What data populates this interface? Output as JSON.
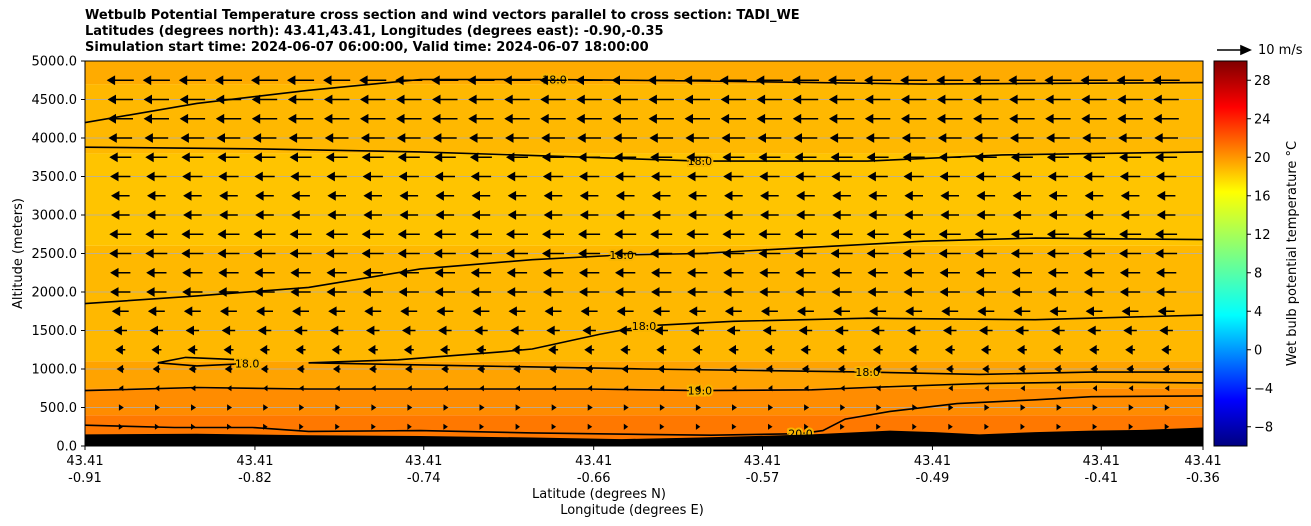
{
  "title_lines": [
    "Wetbulb Potential Temperature cross section and wind vectors parallel to cross section: TADI_WE",
    "Latitudes (degrees north): 43.41,43.41, Longitudes (degrees east): -0.90,-0.35",
    "Simulation start time: 2024-06-07 06:00:00, Valid time: 2024-06-07 18:00:00"
  ],
  "chart_data": {
    "type": "heatmap",
    "subtype": "vertical cross section with contour lines and wind vectors",
    "xlabel_lat": "Latitude (degrees N)",
    "xlabel_lon": "Longitude (degrees E)",
    "ylabel": "Altitude (meters)",
    "ylim": [
      0,
      5000
    ],
    "xlim": [
      0,
      1
    ],
    "yticks": [
      0,
      500,
      1000,
      1500,
      2000,
      2500,
      3000,
      3500,
      4000,
      4500,
      5000
    ],
    "ytick_labels": [
      "0.0",
      "500.0",
      "1000.0",
      "1500.0",
      "2000.0",
      "2500.0",
      "3000.0",
      "3500.0",
      "4000.0",
      "4500.0",
      "5000.0"
    ],
    "xticks": [
      {
        "pos": 0.0,
        "lat": "43.41",
        "lon": "-0.91"
      },
      {
        "pos": 0.152,
        "lat": "43.41",
        "lon": "-0.82"
      },
      {
        "pos": 0.303,
        "lat": "43.41",
        "lon": "-0.74"
      },
      {
        "pos": 0.455,
        "lat": "43.41",
        "lon": "-0.66"
      },
      {
        "pos": 0.606,
        "lat": "43.41",
        "lon": "-0.57"
      },
      {
        "pos": 0.758,
        "lat": "43.41",
        "lon": "-0.49"
      },
      {
        "pos": 0.909,
        "lat": "43.41",
        "lon": "-0.41"
      },
      {
        "pos": 1.0,
        "lat": "43.41",
        "lon": "-0.36"
      }
    ],
    "grid": true,
    "terrain_profile": [
      [
        0,
        150
      ],
      [
        0.1,
        160
      ],
      [
        0.2,
        140
      ],
      [
        0.3,
        130
      ],
      [
        0.4,
        110
      ],
      [
        0.48,
        90
      ],
      [
        0.55,
        110
      ],
      [
        0.6,
        130
      ],
      [
        0.65,
        150
      ],
      [
        0.72,
        200
      ],
      [
        0.76,
        180
      ],
      [
        0.8,
        150
      ],
      [
        0.85,
        180
      ],
      [
        0.9,
        200
      ],
      [
        0.95,
        210
      ],
      [
        1.0,
        240
      ]
    ],
    "colorbar": {
      "label": "Wet bulb potential temperature °C",
      "range": [
        -10,
        30
      ],
      "ticks": [
        -8,
        -4,
        0,
        4,
        8,
        12,
        16,
        20,
        24,
        28
      ],
      "tick_labels": [
        "−8",
        "−4",
        "0",
        "4",
        "8",
        "12",
        "16",
        "20",
        "24",
        "28"
      ]
    },
    "shading_layers": [
      {
        "z_bottom": 0,
        "z_top": 400,
        "value": 20.3
      },
      {
        "z_bottom": 400,
        "z_top": 750,
        "value": 19.5
      },
      {
        "z_bottom": 750,
        "z_top": 1100,
        "value": 18.6
      },
      {
        "z_bottom": 1100,
        "z_top": 2600,
        "value": 17.8
      },
      {
        "z_bottom": 2600,
        "z_top": 3800,
        "value": 17.3
      },
      {
        "z_bottom": 3800,
        "z_top": 4700,
        "value": 17.8
      },
      {
        "z_bottom": 4700,
        "z_top": 5000,
        "value": 18.3
      }
    ],
    "contours": [
      {
        "level": "18.0",
        "points": [
          [
            0,
            4200
          ],
          [
            0.1,
            4450
          ],
          [
            0.2,
            4620
          ],
          [
            0.3,
            4760
          ],
          [
            0.42,
            4760
          ],
          [
            0.55,
            4740
          ],
          [
            0.75,
            4700
          ],
          [
            1.0,
            4720
          ]
        ]
      },
      {
        "level": "18.0",
        "points": [
          [
            0,
            3880
          ],
          [
            0.15,
            3860
          ],
          [
            0.3,
            3820
          ],
          [
            0.45,
            3750
          ],
          [
            0.55,
            3700
          ],
          [
            0.7,
            3700
          ],
          [
            0.82,
            3780
          ],
          [
            1.0,
            3820
          ]
        ]
      },
      {
        "level": "18.0",
        "points": [
          [
            0,
            1850
          ],
          [
            0.1,
            1950
          ],
          [
            0.2,
            2060
          ],
          [
            0.3,
            2300
          ],
          [
            0.4,
            2420
          ],
          [
            0.48,
            2480
          ],
          [
            0.55,
            2500
          ],
          [
            0.65,
            2580
          ],
          [
            0.75,
            2660
          ],
          [
            0.85,
            2700
          ],
          [
            1.0,
            2680
          ]
        ]
      },
      {
        "level": "18.0",
        "points": [
          [
            0.2,
            1080
          ],
          [
            0.28,
            1120
          ],
          [
            0.37,
            1220
          ],
          [
            0.4,
            1260
          ],
          [
            0.46,
            1450
          ],
          [
            0.5,
            1560
          ],
          [
            0.58,
            1620
          ],
          [
            0.7,
            1660
          ],
          [
            0.85,
            1640
          ],
          [
            1.0,
            1700
          ]
        ]
      },
      {
        "level": "18.0",
        "points": [
          [
            0.065,
            1080
          ],
          [
            0.09,
            1150
          ],
          [
            0.14,
            1120
          ],
          [
            0.145,
            1070
          ],
          [
            0.1,
            1040
          ],
          [
            0.065,
            1080
          ]
        ]
      },
      {
        "level": "18.0",
        "points": [
          [
            0.2,
            1080
          ],
          [
            0.35,
            1040
          ],
          [
            0.5,
            1000
          ],
          [
            0.6,
            980
          ],
          [
            0.7,
            960
          ],
          [
            0.8,
            930
          ],
          [
            0.9,
            960
          ],
          [
            1.0,
            960
          ]
        ]
      },
      {
        "level": "19.0",
        "points": [
          [
            0,
            720
          ],
          [
            0.1,
            760
          ],
          [
            0.2,
            740
          ],
          [
            0.3,
            740
          ],
          [
            0.45,
            740
          ],
          [
            0.55,
            720
          ],
          [
            0.65,
            730
          ],
          [
            0.7,
            760
          ],
          [
            0.8,
            810
          ],
          [
            0.9,
            830
          ],
          [
            1.0,
            820
          ]
        ]
      },
      {
        "level": "20.0",
        "points": [
          [
            0,
            270
          ],
          [
            0.08,
            240
          ],
          [
            0.15,
            240
          ],
          [
            0.2,
            190
          ],
          [
            0.3,
            200
          ],
          [
            0.4,
            170
          ],
          [
            0.5,
            150
          ],
          [
            0.56,
            140
          ],
          [
            0.64,
            160
          ],
          [
            0.66,
            200
          ],
          [
            0.68,
            350
          ],
          [
            0.72,
            450
          ],
          [
            0.78,
            550
          ],
          [
            0.85,
            600
          ],
          [
            0.9,
            640
          ],
          [
            1.0,
            650
          ]
        ]
      }
    ],
    "wind_vectors": {
      "u_by_level": [
        {
          "z": 250,
          "u": 0.5
        },
        {
          "z": 500,
          "u": 0.8
        },
        {
          "z": 750,
          "u": -0.5
        },
        {
          "z": 1000,
          "u": -1.8
        },
        {
          "z": 1250,
          "u": -2.5
        },
        {
          "z": 1500,
          "u": -3.5
        },
        {
          "z": 1750,
          "u": -4.5
        },
        {
          "z": 2000,
          "u": -5.5
        },
        {
          "z": 2250,
          "u": -5.5
        },
        {
          "z": 2500,
          "u": -6.0
        },
        {
          "z": 2750,
          "u": -6.0
        },
        {
          "z": 3000,
          "u": -5.0
        },
        {
          "z": 3250,
          "u": -5.0
        },
        {
          "z": 3500,
          "u": -5.5
        },
        {
          "z": 3750,
          "u": -6.0
        },
        {
          "z": 4000,
          "u": -6.5
        },
        {
          "z": 4250,
          "u": -7.0
        },
        {
          "z": 4500,
          "u": -7.0
        },
        {
          "z": 4750,
          "u": -7.5
        }
      ],
      "reference": "10 m/s",
      "reference_value": 10
    }
  }
}
